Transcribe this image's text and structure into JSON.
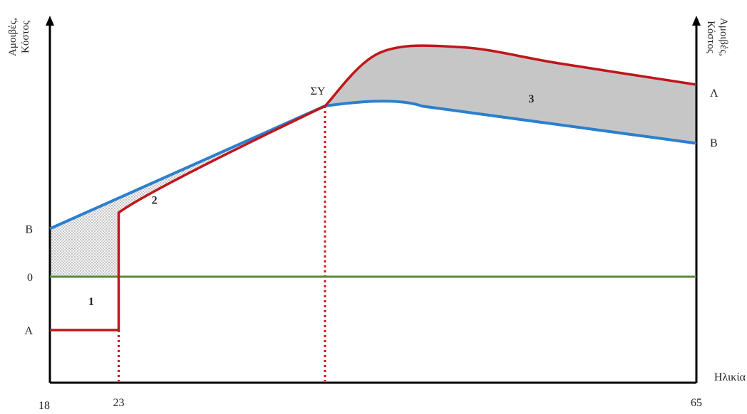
{
  "chart_data": {
    "type": "line",
    "x_axis": {
      "label": "Ηλικία",
      "ticks": [
        {
          "value": 18,
          "label": "18"
        },
        {
          "value": 23,
          "label": "23"
        },
        {
          "value": 65,
          "label": "65"
        }
      ],
      "range": [
        18,
        65
      ]
    },
    "y_axis_left": {
      "label_line1": "Αμοιβές,",
      "label_line2": "Κόστος",
      "ticks": [
        {
          "name": "B",
          "label": "B",
          "value": 0.9
        },
        {
          "name": "0",
          "label": "0",
          "value": 0
        },
        {
          "name": "A",
          "label": "A",
          "value": -1
        }
      ]
    },
    "y_axis_right": {
      "label_line1": "Αμοιβές,",
      "label_line2": "Κόστος",
      "end_labels": {
        "red": "Λ",
        "blue": "B"
      }
    },
    "series": [
      {
        "key": "blue",
        "color": "#2b7fce",
        "points": [
          [
            18,
            0.9
          ],
          [
            38,
            3.2
          ],
          [
            43,
            3.25
          ],
          [
            65,
            2.5
          ]
        ]
      },
      {
        "key": "red",
        "color": "#c0161b",
        "points": [
          [
            18,
            -1
          ],
          [
            23,
            -1
          ],
          [
            23,
            1.2
          ],
          [
            38,
            3.2
          ],
          [
            42,
            4.2
          ],
          [
            48,
            4.3
          ],
          [
            55,
            4.0
          ],
          [
            65,
            3.6
          ]
        ]
      },
      {
        "key": "green",
        "color": "#5a8a3a",
        "points": [
          [
            18,
            0
          ],
          [
            65,
            0
          ]
        ]
      }
    ],
    "annotations": {
      "crossing": {
        "label": "ΣΥ",
        "x": 38,
        "y": 3.2
      },
      "areas": [
        {
          "label": "1",
          "x": 21,
          "y": -0.45
        },
        {
          "label": "2",
          "x": 25.6,
          "y": 1.45
        },
        {
          "label": "3",
          "x": 53,
          "y": 3.35
        }
      ]
    },
    "grid": false,
    "legend": "none"
  }
}
